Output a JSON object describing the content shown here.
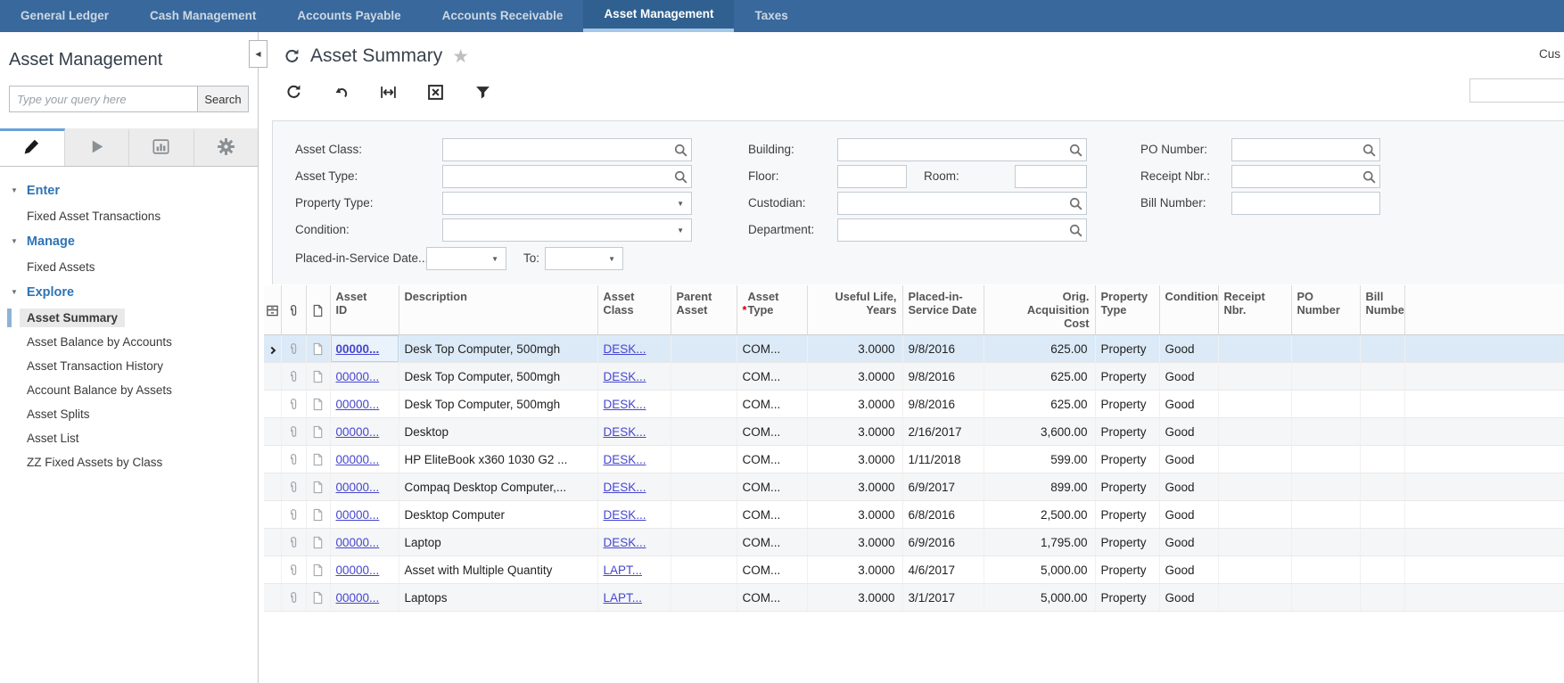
{
  "nav": {
    "tabs": [
      {
        "label": "General Ledger",
        "active": false
      },
      {
        "label": "Cash Management",
        "active": false
      },
      {
        "label": "Accounts Payable",
        "active": false
      },
      {
        "label": "Accounts Receivable",
        "active": false
      },
      {
        "label": "Asset Management",
        "active": true
      },
      {
        "label": "Taxes",
        "active": false
      }
    ]
  },
  "sidebar": {
    "title": "Asset Management",
    "search": {
      "placeholder": "Type your query here",
      "button_label": "Search"
    },
    "tabs": [
      {
        "icon": "pencil-icon",
        "active": true
      },
      {
        "icon": "play-icon",
        "active": false
      },
      {
        "icon": "bar-chart-icon",
        "active": false
      },
      {
        "icon": "gear-icon",
        "active": false
      }
    ],
    "sections": [
      {
        "label": "Enter",
        "items": [
          {
            "label": "Fixed Asset Transactions",
            "selected": false
          }
        ]
      },
      {
        "label": "Manage",
        "items": [
          {
            "label": "Fixed Assets",
            "selected": false
          }
        ]
      },
      {
        "label": "Explore",
        "items": [
          {
            "label": "Asset Summary",
            "selected": true
          },
          {
            "label": "Asset Balance by Accounts",
            "selected": false
          },
          {
            "label": "Asset Transaction History",
            "selected": false
          },
          {
            "label": "Account Balance by Assets",
            "selected": false
          },
          {
            "label": "Asset Splits",
            "selected": false
          },
          {
            "label": "Asset List",
            "selected": false
          },
          {
            "label": "ZZ Fixed Assets by Class",
            "selected": false
          }
        ]
      }
    ]
  },
  "main": {
    "title": "Asset Summary",
    "top_right_text": "Cus",
    "toolbar": [
      {
        "icon": "refresh-icon"
      },
      {
        "icon": "undo-icon"
      },
      {
        "icon": "fit-width-icon"
      },
      {
        "icon": "export-excel-icon"
      },
      {
        "icon": "filter-icon"
      }
    ],
    "filters": {
      "asset_class_label": "Asset Class:",
      "asset_type_label": "Asset Type:",
      "property_type_label": "Property Type:",
      "condition_label": "Condition:",
      "placed_in_service_label": "Placed-in-Service Date...",
      "to_label": "To:",
      "building_label": "Building:",
      "floor_label": "Floor:",
      "room_label": "Room:",
      "custodian_label": "Custodian:",
      "department_label": "Department:",
      "po_number_label": "PO Number:",
      "receipt_nbr_label": "Receipt Nbr.:",
      "bill_number_label": "Bill Number:"
    },
    "grid": {
      "columns": [
        {
          "key": "asset_id",
          "label": "Asset ID",
          "link": true
        },
        {
          "key": "description",
          "label": "Description"
        },
        {
          "key": "asset_class",
          "label": "Asset Class",
          "link": true
        },
        {
          "key": "parent_asset",
          "label": "Parent Asset"
        },
        {
          "key": "asset_type",
          "label": "Asset Type",
          "required": true
        },
        {
          "key": "useful_life",
          "label": "Useful Life, Years",
          "align": "right"
        },
        {
          "key": "placed_date",
          "label": "Placed-in-Service Date"
        },
        {
          "key": "orig_cost",
          "label": "Orig. Acquisition Cost",
          "align": "right"
        },
        {
          "key": "property_type",
          "label": "Property Type"
        },
        {
          "key": "condition",
          "label": "Condition"
        },
        {
          "key": "receipt_nbr",
          "label": "Receipt Nbr."
        },
        {
          "key": "po_number",
          "label": "PO Number"
        },
        {
          "key": "bill_number",
          "label": "Bill Number"
        }
      ],
      "rows": [
        {
          "selected": true,
          "asset_id": "00000...",
          "description": "Desk Top Computer, 500mgh",
          "asset_class": "DESK...",
          "parent_asset": "",
          "asset_type": "COM...",
          "useful_life": "3.0000",
          "placed_date": "9/8/2016",
          "orig_cost": "625.00",
          "property_type": "Property",
          "condition": "Good",
          "receipt_nbr": "",
          "po_number": "",
          "bill_number": ""
        },
        {
          "selected": false,
          "asset_id": "00000...",
          "description": "Desk Top Computer, 500mgh",
          "asset_class": "DESK...",
          "parent_asset": "",
          "asset_type": "COM...",
          "useful_life": "3.0000",
          "placed_date": "9/8/2016",
          "orig_cost": "625.00",
          "property_type": "Property",
          "condition": "Good",
          "receipt_nbr": "",
          "po_number": "",
          "bill_number": ""
        },
        {
          "selected": false,
          "asset_id": "00000...",
          "description": "Desk Top Computer, 500mgh",
          "asset_class": "DESK...",
          "parent_asset": "",
          "asset_type": "COM...",
          "useful_life": "3.0000",
          "placed_date": "9/8/2016",
          "orig_cost": "625.00",
          "property_type": "Property",
          "condition": "Good",
          "receipt_nbr": "",
          "po_number": "",
          "bill_number": ""
        },
        {
          "selected": false,
          "asset_id": "00000...",
          "description": "Desktop",
          "asset_class": "DESK...",
          "parent_asset": "",
          "asset_type": "COM...",
          "useful_life": "3.0000",
          "placed_date": "2/16/2017",
          "orig_cost": "3,600.00",
          "property_type": "Property",
          "condition": "Good",
          "receipt_nbr": "",
          "po_number": "",
          "bill_number": ""
        },
        {
          "selected": false,
          "asset_id": "00000...",
          "description": "HP EliteBook x360 1030 G2 ...",
          "asset_class": "DESK...",
          "parent_asset": "",
          "asset_type": "COM...",
          "useful_life": "3.0000",
          "placed_date": "1/11/2018",
          "orig_cost": "599.00",
          "property_type": "Property",
          "condition": "Good",
          "receipt_nbr": "",
          "po_number": "",
          "bill_number": ""
        },
        {
          "selected": false,
          "asset_id": "00000...",
          "description": "Compaq Desktop Computer,...",
          "asset_class": "DESK...",
          "parent_asset": "",
          "asset_type": "COM...",
          "useful_life": "3.0000",
          "placed_date": "6/9/2017",
          "orig_cost": "899.00",
          "property_type": "Property",
          "condition": "Good",
          "receipt_nbr": "",
          "po_number": "",
          "bill_number": ""
        },
        {
          "selected": false,
          "asset_id": "00000...",
          "description": "Desktop Computer",
          "asset_class": "DESK...",
          "parent_asset": "",
          "asset_type": "COM...",
          "useful_life": "3.0000",
          "placed_date": "6/8/2016",
          "orig_cost": "2,500.00",
          "property_type": "Property",
          "condition": "Good",
          "receipt_nbr": "",
          "po_number": "",
          "bill_number": ""
        },
        {
          "selected": false,
          "asset_id": "00000...",
          "description": "Laptop",
          "asset_class": "DESK...",
          "parent_asset": "",
          "asset_type": "COM...",
          "useful_life": "3.0000",
          "placed_date": "6/9/2016",
          "orig_cost": "1,795.00",
          "property_type": "Property",
          "condition": "Good",
          "receipt_nbr": "",
          "po_number": "",
          "bill_number": ""
        },
        {
          "selected": false,
          "asset_id": "00000...",
          "description": "Asset with Multiple Quantity",
          "asset_class": "LAPT...",
          "parent_asset": "",
          "asset_type": "COM...",
          "useful_life": "3.0000",
          "placed_date": "4/6/2017",
          "orig_cost": "5,000.00",
          "property_type": "Property",
          "condition": "Good",
          "receipt_nbr": "",
          "po_number": "",
          "bill_number": ""
        },
        {
          "selected": false,
          "asset_id": "00000...",
          "description": "Laptops",
          "asset_class": "LAPT...",
          "parent_asset": "",
          "asset_type": "COM...",
          "useful_life": "3.0000",
          "placed_date": "3/1/2017",
          "orig_cost": "5,000.00",
          "property_type": "Property",
          "condition": "Good",
          "receipt_nbr": "",
          "po_number": "",
          "bill_number": ""
        }
      ]
    }
  },
  "icons": {
    "refresh-icon": "circular arrow",
    "undo-icon": "curved left arrow",
    "fit-width-icon": "fit to width arrows",
    "export-excel-icon": "boxed X",
    "filter-icon": "funnel",
    "lookup-icon": "magnifier",
    "chevron-down-icon": "down triangle",
    "collapse-left-icon": "left triangle",
    "favorite-star-icon": "star",
    "pencil-icon": "pencil",
    "play-icon": "play triangle",
    "bar-chart-icon": "bar chart",
    "gear-icon": "gear",
    "paperclip-icon": "paperclip",
    "note-icon": "document page",
    "grid-settings-icon": "drawer box",
    "row-indicator-icon": "right chevron"
  },
  "colors": {
    "nav_bg": "#38689c",
    "nav_active_bg": "#2f608f",
    "nav_active_underline": "#a6c8e8",
    "section_blue": "#2e74b5",
    "link": "#4646cf",
    "selected_row_bg": "#dceaf8",
    "required_asterisk": "#cc0000"
  }
}
